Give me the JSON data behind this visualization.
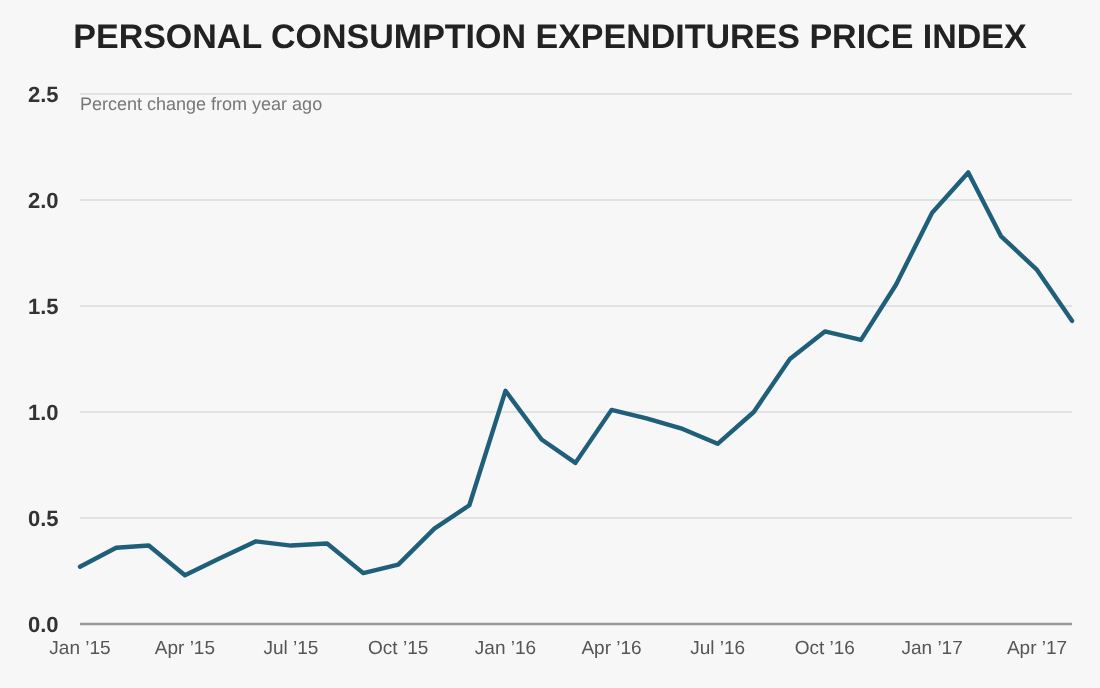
{
  "chart_data": {
    "type": "line",
    "title": "PERSONAL CONSUMPTION EXPENDITURES PRICE INDEX",
    "subtitle": "Percent change from year ago",
    "x": [
      "2015-01",
      "2015-02",
      "2015-03",
      "2015-04",
      "2015-05",
      "2015-06",
      "2015-07",
      "2015-08",
      "2015-09",
      "2015-10",
      "2015-11",
      "2015-12",
      "2016-01",
      "2016-02",
      "2016-03",
      "2016-04",
      "2016-05",
      "2016-06",
      "2016-07",
      "2016-08",
      "2016-09",
      "2016-10",
      "2016-11",
      "2016-12",
      "2017-01",
      "2017-02",
      "2017-03",
      "2017-04",
      "2017-05"
    ],
    "series": [
      {
        "color": "#1f5f7a",
        "values": [
          0.27,
          0.36,
          0.37,
          0.23,
          0.31,
          0.39,
          0.37,
          0.38,
          0.24,
          0.28,
          0.45,
          0.56,
          1.1,
          0.87,
          0.76,
          1.01,
          0.97,
          0.92,
          0.85,
          1.0,
          1.25,
          1.38,
          1.34,
          1.6,
          1.94,
          2.13,
          1.83,
          1.67,
          1.43
        ]
      }
    ],
    "xlim": [
      "2015-01",
      "2017-05"
    ],
    "xticks": [
      {
        "value": "2015-01",
        "label": "Jan ’15"
      },
      {
        "value": "2015-04",
        "label": "Apr ’15"
      },
      {
        "value": "2015-07",
        "label": "Jul ’15"
      },
      {
        "value": "2015-10",
        "label": "Oct ’15"
      },
      {
        "value": "2016-01",
        "label": "Jan ’16"
      },
      {
        "value": "2016-04",
        "label": "Apr ’16"
      },
      {
        "value": "2016-07",
        "label": "Jul ’16"
      },
      {
        "value": "2016-10",
        "label": "Oct ’16"
      },
      {
        "value": "2017-01",
        "label": "Jan ’17"
      },
      {
        "value": "2017-04",
        "label": "Apr ’17"
      }
    ],
    "ylim": [
      0,
      2.5
    ],
    "yticks": [
      {
        "value": 0,
        "label": "0.0"
      },
      {
        "value": 0.5,
        "label": "0.5"
      },
      {
        "value": 1,
        "label": "1.0"
      },
      {
        "value": 1.5,
        "label": "1.5"
      },
      {
        "value": 2,
        "label": "2.0"
      },
      {
        "value": 2.5,
        "label": "2.5"
      }
    ],
    "grid": "y",
    "marker": "none",
    "line_style": "solid"
  }
}
